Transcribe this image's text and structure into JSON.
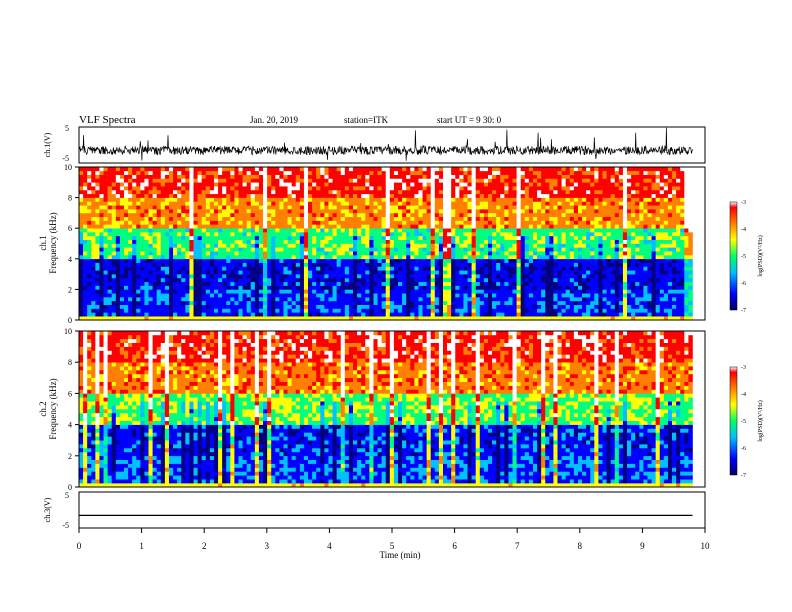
{
  "header": {
    "title": "VLF Spectra",
    "date": "Jan. 20, 2019",
    "station": "station=ITK",
    "start": "start  UT  =  9   30: 0"
  },
  "colorbar": {
    "label": "log(PSD)(V²/Hz)",
    "ticks": [
      "-3",
      "-4",
      "-5",
      "-6",
      "-7"
    ]
  },
  "chart_data": [
    {
      "type": "line",
      "panel": "waveform-ch1",
      "ylabel": "ch.1(V)",
      "ylim": [
        -5,
        5
      ],
      "yticks": [
        "5",
        "-5"
      ],
      "x": [
        0,
        1,
        2,
        3,
        4,
        5,
        6,
        7,
        8,
        9,
        9.8
      ],
      "y_baseline": [
        -1.5,
        -1.5,
        -1.5,
        -1.5,
        -1.5,
        -1.5,
        -1.5,
        -1.5,
        -1.5,
        -1.5,
        -1.5
      ],
      "y_min_approx": -5,
      "y_max_approx": 5
    },
    {
      "type": "heatmap",
      "panel": "spectrogram-ch1",
      "ylabel": "ch.1\nFrequency (kHz)",
      "xlim": [
        0,
        10
      ],
      "ylim": [
        0,
        10
      ],
      "yticks": [
        "0",
        "2",
        "4",
        "6",
        "8",
        "10"
      ],
      "data_end_min": 9.8,
      "zlim": [
        -7,
        -3
      ],
      "frequency_bands_kHz": [
        0,
        2,
        4,
        6,
        8,
        10
      ],
      "typical_log_psd_by_band": [
        -6.3,
        -6.5,
        -5.2,
        -4.2,
        -3.6
      ],
      "colormap": [
        "#000080",
        "#0000ff",
        "#00c0ff",
        "#00ff80",
        "#ffff00",
        "#ff8000",
        "#ff0000",
        "#ffffff"
      ]
    },
    {
      "type": "heatmap",
      "panel": "spectrogram-ch2",
      "ylabel": "ch.2\nFrequency (kHz)",
      "xlim": [
        0,
        10
      ],
      "ylim": [
        0,
        10
      ],
      "yticks": [
        "0",
        "2",
        "4",
        "6",
        "8",
        "10"
      ],
      "data_end_min": 9.8,
      "zlim": [
        -7,
        -3
      ],
      "frequency_bands_kHz": [
        0,
        2,
        4,
        6,
        8,
        10
      ],
      "typical_log_psd_by_band": [
        -6.2,
        -6.4,
        -5.1,
        -4.1,
        -3.6
      ],
      "colormap": [
        "#000080",
        "#0000ff",
        "#00c0ff",
        "#00ff80",
        "#ffff00",
        "#ff8000",
        "#ff0000",
        "#ffffff"
      ]
    },
    {
      "type": "line",
      "panel": "waveform-ch3",
      "ylabel": "ch.3(V)",
      "xlabel": "Time (min)",
      "xlim": [
        0,
        10
      ],
      "xticks": [
        "0",
        "1",
        "2",
        "3",
        "4",
        "5",
        "6",
        "7",
        "8",
        "9",
        "10"
      ],
      "ylim": [
        -5,
        5
      ],
      "yticks": [
        "5",
        "-5"
      ],
      "x": [
        0,
        9.8
      ],
      "y": [
        -1.5,
        -1.5
      ]
    }
  ]
}
